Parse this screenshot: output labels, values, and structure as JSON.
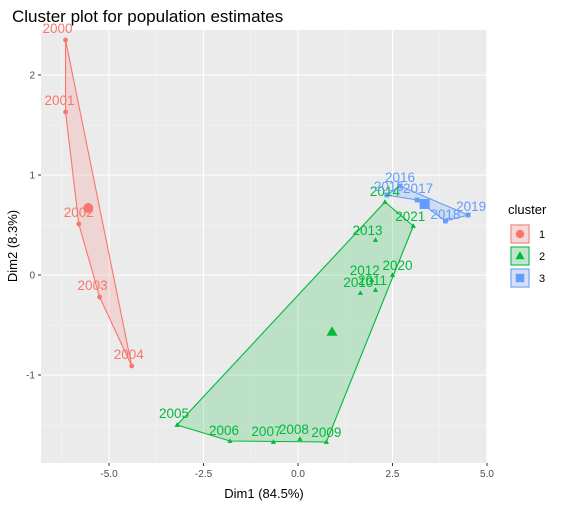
{
  "chart_data": {
    "type": "scatter",
    "title": "Cluster plot for population estimates",
    "xlabel": "Dim1 (84.5%)",
    "ylabel": "Dim2 (8.3%)",
    "xlim": [
      -6.8,
      5.0
    ],
    "ylim": [
      -1.88,
      2.45
    ],
    "x_ticks": [
      -5.0,
      -2.5,
      0.0,
      2.5,
      5.0
    ],
    "x_tick_labels": [
      "-5.0",
      "-2.5",
      "0.0",
      "2.5",
      "5.0"
    ],
    "y_ticks": [
      -1,
      0,
      1,
      2
    ],
    "y_tick_labels": [
      "-1",
      "0",
      "1",
      "2"
    ],
    "grid": true,
    "legend": {
      "title": "cluster",
      "position": "right"
    },
    "series": [
      {
        "name": "1",
        "color": "#F8766D",
        "marker": "circle",
        "points": [
          {
            "label": "2000",
            "x": -6.15,
            "y": 2.35
          },
          {
            "label": "2001",
            "x": -6.15,
            "y": 1.63
          },
          {
            "label": "2002",
            "x": -5.8,
            "y": 0.51
          },
          {
            "label": "2003",
            "x": -5.25,
            "y": -0.22
          },
          {
            "label": "2004",
            "x": -4.4,
            "y": -0.91
          }
        ],
        "hull": [
          "2000",
          "2004",
          "2003",
          "2002",
          "2001"
        ],
        "center": {
          "x": -5.55,
          "y": 0.67
        }
      },
      {
        "name": "2",
        "color": "#00BA38",
        "marker": "triangle",
        "points": [
          {
            "label": "2005",
            "x": -3.2,
            "y": -1.5
          },
          {
            "label": "2006",
            "x": -1.8,
            "y": -1.66
          },
          {
            "label": "2007",
            "x": -0.65,
            "y": -1.67
          },
          {
            "label": "2008",
            "x": 0.05,
            "y": -1.64
          },
          {
            "label": "2009",
            "x": 0.75,
            "y": -1.67
          },
          {
            "label": "2010",
            "x": 1.65,
            "y": -0.18
          },
          {
            "label": "2011",
            "x": 2.05,
            "y": -0.15
          },
          {
            "label": "2012",
            "x": 1.95,
            "y": -0.05
          },
          {
            "label": "2013",
            "x": 2.05,
            "y": 0.35
          },
          {
            "label": "2014",
            "x": 2.3,
            "y": 0.73
          },
          {
            "label": "2020",
            "x": 2.5,
            "y": 0.0
          },
          {
            "label": "2021",
            "x": 3.05,
            "y": 0.49
          }
        ],
        "hull": [
          "2005",
          "2006",
          "2009",
          "2021",
          "2014"
        ],
        "center": {
          "x": 0.9,
          "y": -0.57
        }
      },
      {
        "name": "3",
        "color": "#619CFF",
        "marker": "square",
        "points": [
          {
            "label": "2015",
            "x": 2.35,
            "y": 0.8
          },
          {
            "label": "2016",
            "x": 2.7,
            "y": 0.89
          },
          {
            "label": "2017",
            "x": 3.15,
            "y": 0.75
          },
          {
            "label": "2018",
            "x": 3.9,
            "y": 0.54
          },
          {
            "label": "2019",
            "x": 4.5,
            "y": 0.6
          }
        ],
        "hull": [
          "2015",
          "2016",
          "2019",
          "2018",
          "2017"
        ],
        "center": {
          "x": 3.35,
          "y": 0.71
        }
      }
    ]
  }
}
